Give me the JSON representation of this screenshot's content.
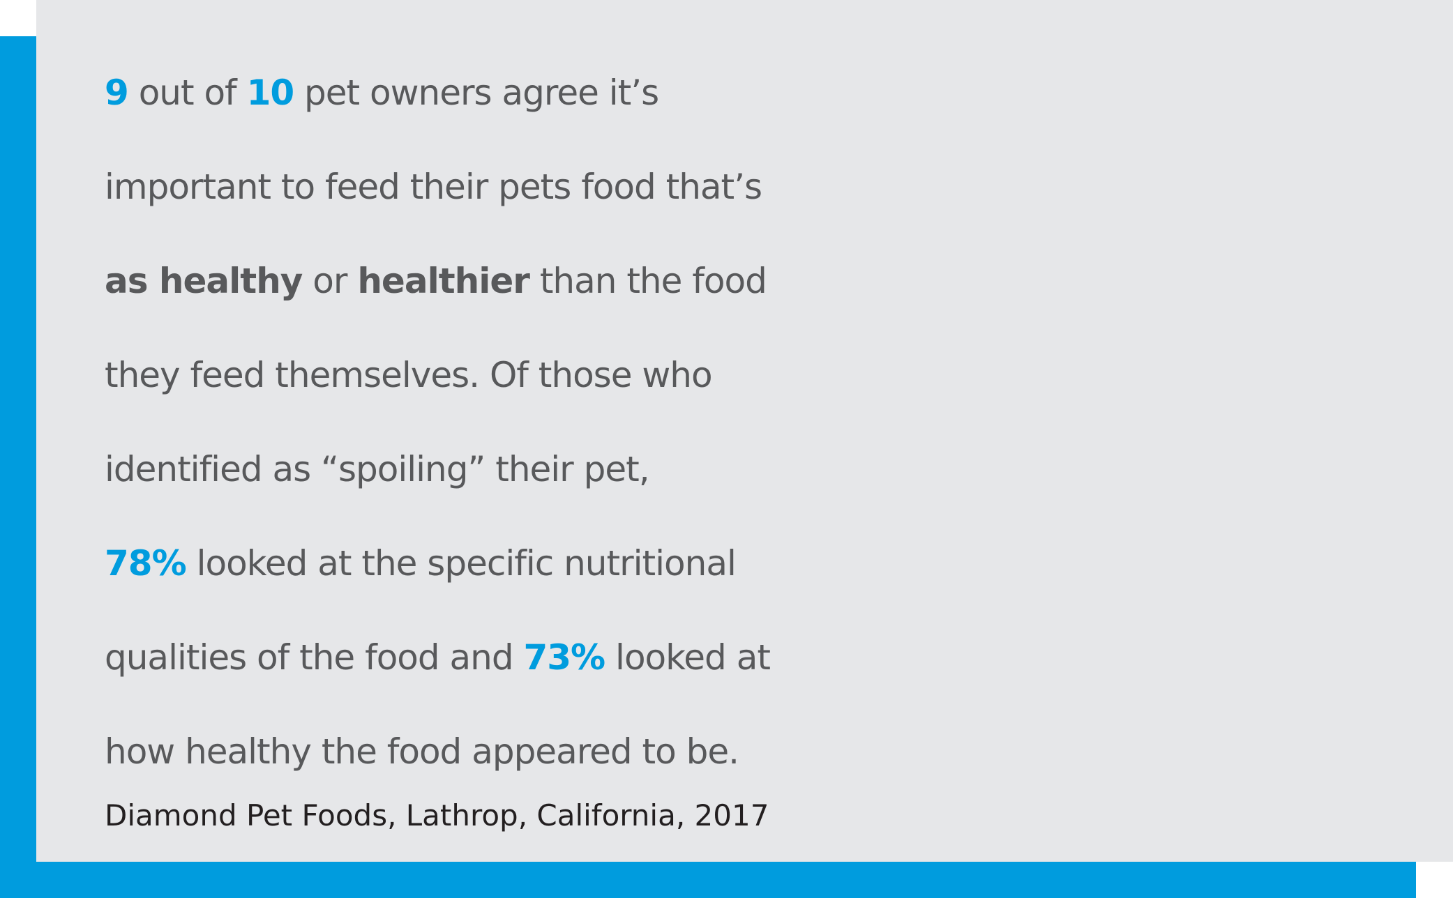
{
  "colors": {
    "accent": "#009cde",
    "card_background": "#e6e7e9",
    "body_text": "#58595b",
    "source_text": "#231f20"
  },
  "statement": {
    "line1": {
      "num1": "9",
      "t1": " out of ",
      "num2": "10",
      "t2": " pet owners agree it’s"
    },
    "line2": {
      "t1": "important to feed their pets food that’s"
    },
    "line3": {
      "bold1": "as healthy",
      "t1": " or ",
      "bold2": "healthier",
      "t2": " than the food"
    },
    "line4": {
      "t1": "they feed themselves. Of those who"
    },
    "line5": {
      "t1": "identified as “spoiling” their pet,"
    },
    "line6": {
      "pct1": "78%",
      "t1": " looked at the specific nutritional"
    },
    "line7": {
      "t1": "qualities of the food and ",
      "pct2": "73%",
      "t2": " looked at"
    },
    "line8": {
      "t1": "how healthy the food appeared to be."
    }
  },
  "source": "Diamond Pet Foods, Lathrop, California, 2017"
}
